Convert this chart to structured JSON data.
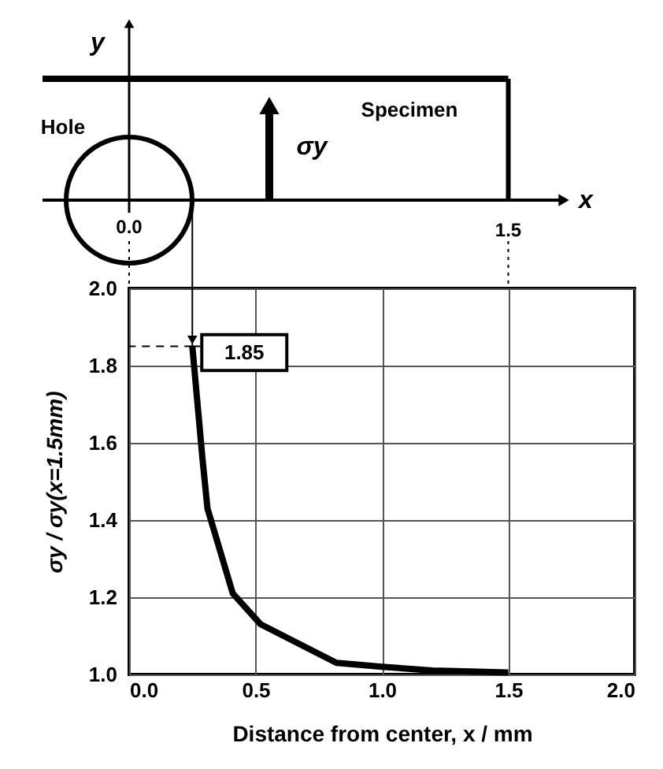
{
  "chart_data": {
    "type": "line",
    "xlabel": "Distance from center, x / mm",
    "ylabel": "σy / σy(x=1.5mm)",
    "x": [
      0.25,
      0.29,
      0.31,
      0.41,
      0.52,
      0.82,
      1.0,
      1.2,
      1.5
    ],
    "series": [
      {
        "color": "#000000",
        "values": [
          1.85,
          1.56,
          1.43,
          1.21,
          1.13,
          1.03,
          1.02,
          1.01,
          1.005
        ],
        "value_labels": [
          "1.85",
          null,
          null,
          null,
          null,
          null,
          null,
          null,
          null
        ]
      }
    ],
    "xlim": [
      0,
      2
    ],
    "ylim": [
      1,
      2
    ],
    "xticks": [
      {
        "value": 0,
        "label": "0.0"
      },
      {
        "value": 0.5,
        "label": "0.5"
      },
      {
        "value": 1,
        "label": "1.0"
      },
      {
        "value": 1.5,
        "label": "1.5"
      },
      {
        "value": 2,
        "label": "2.0"
      }
    ],
    "yticks": [
      {
        "value": 1,
        "label": "1.0"
      },
      {
        "value": 1.2,
        "label": "1.2"
      },
      {
        "value": 1.4,
        "label": "1.4"
      },
      {
        "value": 1.6,
        "label": "1.6"
      },
      {
        "value": 1.8,
        "label": "1.8"
      },
      {
        "value": 2,
        "label": "2.0"
      }
    ],
    "grid": true,
    "marker": "none",
    "line_style": "solid",
    "annotations": [
      "y",
      "x",
      "Hole",
      "Specimen",
      "σy",
      "0.0",
      "1.5"
    ]
  }
}
